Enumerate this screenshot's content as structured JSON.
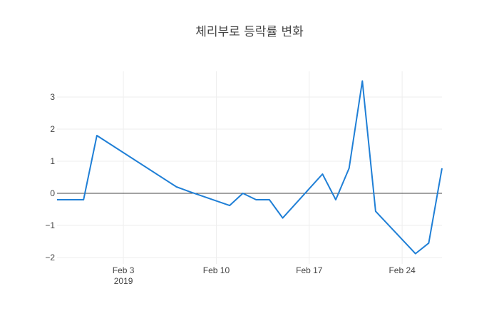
{
  "chart_data": {
    "type": "line",
    "title": "체리부로 등락률 변화",
    "xlabel": "",
    "ylabel": "",
    "x_tick_labels": [
      {
        "date": "2019-02-03",
        "label": "Feb 3",
        "sublabel": "2019"
      },
      {
        "date": "2019-02-10",
        "label": "Feb 10",
        "sublabel": ""
      },
      {
        "date": "2019-02-17",
        "label": "Feb 17",
        "sublabel": ""
      },
      {
        "date": "2019-02-24",
        "label": "Feb 24",
        "sublabel": ""
      }
    ],
    "y_ticks": [
      3,
      2,
      1,
      0,
      -1,
      -2
    ],
    "y_tick_labels": [
      "3",
      "2",
      "1",
      "0",
      "−1",
      "−2"
    ],
    "xlim": [
      "2019-01-29",
      "2019-02-27"
    ],
    "ylim": [
      -2.2,
      3.8
    ],
    "grid": true,
    "zero_line": true,
    "color": "#1f7fd6",
    "series": [
      {
        "x": [
          "2019-01-29",
          "2019-01-30",
          "2019-01-31",
          "2019-02-01",
          "2019-02-07",
          "2019-02-08",
          "2019-02-11",
          "2019-02-12",
          "2019-02-13",
          "2019-02-14",
          "2019-02-15",
          "2019-02-18",
          "2019-02-19",
          "2019-02-20",
          "2019-02-21",
          "2019-02-22",
          "2019-02-25",
          "2019-02-26",
          "2019-02-27"
        ],
        "y": [
          -0.2,
          -0.2,
          -0.2,
          1.8,
          0.2,
          0.05,
          -0.38,
          0.0,
          -0.2,
          -0.2,
          -0.77,
          0.6,
          -0.2,
          0.78,
          3.5,
          -0.56,
          -1.88,
          -1.55,
          0.78
        ]
      }
    ]
  }
}
